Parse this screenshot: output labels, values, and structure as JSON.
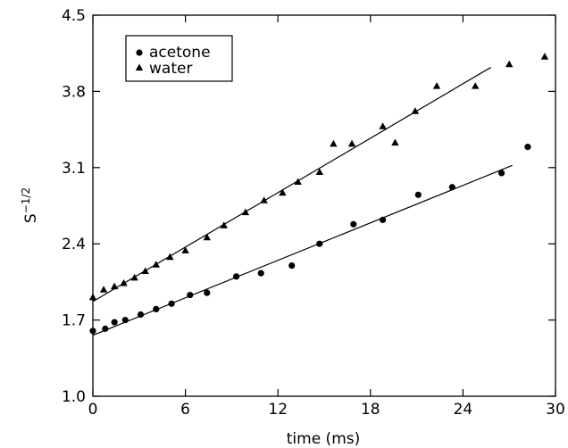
{
  "chart_data": {
    "type": "scatter",
    "xlabel": "time (ms)",
    "ylabel_base": "S",
    "ylabel_exp": "−1/2",
    "xlim": [
      0,
      30
    ],
    "ylim": [
      1.0,
      4.5
    ],
    "xticks": [
      0,
      6,
      12,
      18,
      24,
      30
    ],
    "yticks": [
      1.0,
      1.7,
      2.4,
      3.1,
      3.8,
      4.5
    ],
    "xtick_labels": [
      "0",
      "6",
      "12",
      "18",
      "24",
      "30"
    ],
    "ytick_labels": [
      "1.0",
      "1.7",
      "2.4",
      "3.1",
      "3.8",
      "4.5"
    ],
    "grid": false,
    "legend_position": "top-left",
    "series": [
      {
        "name": "acetone",
        "marker": "circle",
        "x": [
          0.0,
          0.8,
          1.4,
          2.1,
          3.1,
          4.1,
          5.1,
          6.3,
          7.4,
          9.3,
          10.9,
          12.9,
          14.7,
          16.9,
          18.8,
          21.1,
          23.3,
          26.5,
          28.2
        ],
        "y": [
          1.6,
          1.62,
          1.68,
          1.7,
          1.75,
          1.8,
          1.85,
          1.93,
          1.95,
          2.1,
          2.13,
          2.2,
          2.4,
          2.58,
          2.62,
          2.85,
          2.92,
          3.05,
          3.29
        ],
        "fit": {
          "x": [
            0.0,
            27.2
          ],
          "y": [
            1.56,
            3.12
          ]
        }
      },
      {
        "name": "water",
        "marker": "triangle",
        "x": [
          0.0,
          0.7,
          1.4,
          2.0,
          2.7,
          3.4,
          4.1,
          5.0,
          6.0,
          7.4,
          8.5,
          9.9,
          11.1,
          12.3,
          13.3,
          14.7,
          15.6,
          16.8,
          18.8,
          19.6,
          20.9,
          22.3,
          24.8,
          27.0,
          29.3
        ],
        "y": [
          1.91,
          1.98,
          2.01,
          2.04,
          2.09,
          2.15,
          2.21,
          2.28,
          2.34,
          2.46,
          2.57,
          2.69,
          2.8,
          2.87,
          2.97,
          3.06,
          3.32,
          3.32,
          3.48,
          3.33,
          3.62,
          3.85,
          3.85,
          4.05,
          4.12
        ],
        "fit": {
          "x": [
            0.0,
            25.8
          ],
          "y": [
            1.87,
            4.02
          ]
        }
      }
    ]
  }
}
